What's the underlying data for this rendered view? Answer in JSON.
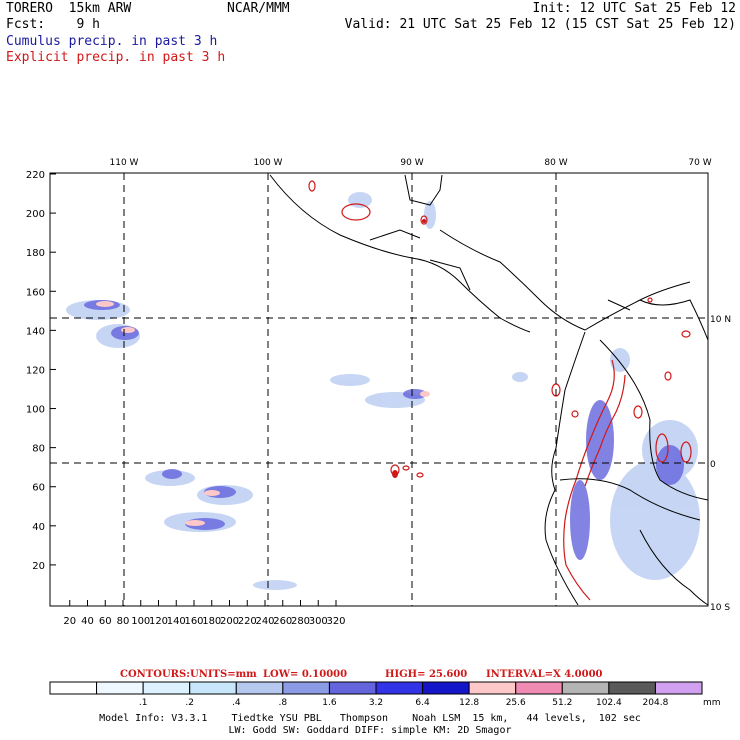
{
  "header": {
    "model_line": "TORERO  15km ARW",
    "center": "NCAR/MMM",
    "init": "Init: 12 UTC Sat 25 Feb 12",
    "fcst": "Fcst:    9 h",
    "valid": "Valid: 21 UTC Sat 25 Feb 12 (15 CST Sat 25 Feb 12)",
    "field1": "Cumulus precip. in past 3 h",
    "field2": "Explicit precip. in past 3 h",
    "field1_color": "#1a1aa0",
    "field2_color": "#d01818"
  },
  "map": {
    "lon_labels": [
      "110 W",
      "100 W",
      "90 W",
      "80 W",
      "70 W"
    ],
    "lat_labels": [
      "10 N",
      "0",
      "10 S"
    ],
    "x_ticks": [
      "20",
      "40",
      "60",
      "80",
      "100",
      "120",
      "140",
      "160",
      "180",
      "200",
      "220",
      "240",
      "260",
      "280",
      "300",
      "320"
    ],
    "y_ticks": [
      "20",
      "40",
      "60",
      "80",
      "100",
      "120",
      "140",
      "160",
      "180",
      "200",
      "220"
    ]
  },
  "contour_info": {
    "label": "CONTOURS:",
    "units": "UNITS=mm",
    "low": "LOW= 0.10000",
    "high": "HIGH=  25.600",
    "interval": "INTERVAL=X  4.0000",
    "color": "#d01818"
  },
  "colorbar": {
    "colors": [
      "#ffffff",
      "#f0f8ff",
      "#dcf2ff",
      "#c8e6fa",
      "#b4c8f0",
      "#8c9be6",
      "#6464dc",
      "#3232e6",
      "#1414c8",
      "#ffc8c8",
      "#f08cb4",
      "#b4b4b4",
      "#5a5a5a",
      "#d2a0f0"
    ],
    "labels": [
      ".1",
      ".2",
      ".4",
      ".8",
      "1.6",
      "3.2",
      "6.4",
      "12.8",
      "25.6",
      "51.2",
      "102.4",
      "204.8"
    ],
    "unit": "mm"
  },
  "footer": {
    "line1": "Model Info: V3.3.1    Tiedtke YSU PBL   Thompson    Noah LSM  15 km,   44 levels,  102 sec",
    "line2": "LW: Godd SW: Goddard DIFF: simple KM: 2D Smagor"
  }
}
